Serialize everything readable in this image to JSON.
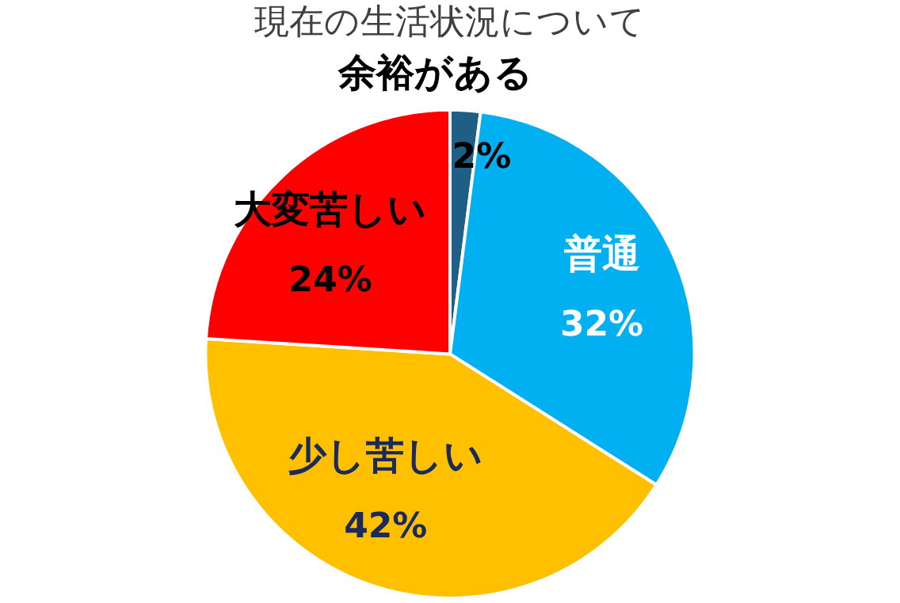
{
  "chart_data": {
    "type": "pie",
    "title": "現在の生活状況について",
    "categories": [
      "余裕がある",
      "普通",
      "少し苦しい",
      "大変苦しい"
    ],
    "values": [
      2,
      32,
      42,
      24
    ],
    "colors": [
      "#1f5f86",
      "#00b0f0",
      "#ffc000",
      "#ff0000"
    ],
    "value_labels": [
      "2%",
      "32%",
      "42%",
      "24%"
    ],
    "legend": false
  }
}
